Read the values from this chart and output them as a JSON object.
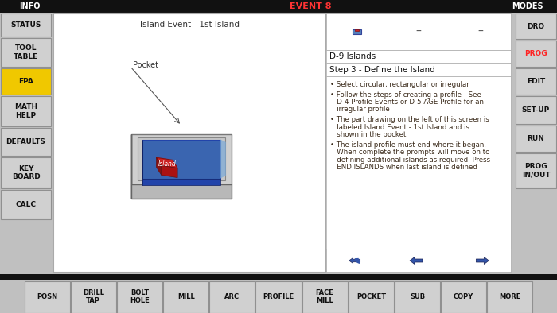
{
  "bg_color": "#c0c0c0",
  "title_bar_color": "#111111",
  "title_text": "EVENT 8",
  "title_text_color": "#ff3333",
  "info_label": "INFO",
  "modes_label": "MODES",
  "left_buttons": [
    "STATUS",
    "TOOL\nTABLE",
    "EPA",
    "MATH\nHELP",
    "DEFAULTS",
    "KEY\nBOARD",
    "CALC"
  ],
  "epa_color": "#f0c800",
  "right_buttons": [
    "DRO",
    "PROG",
    "EDIT",
    "SET-UP",
    "RUN",
    "PROG\nIN/OUT"
  ],
  "prog_color": "#ff2222",
  "bottom_buttons": [
    "POSN",
    "DRILL\nTAP",
    "BOLT\nHOLE",
    "MILL",
    "ARC",
    "PROFILE",
    "FACE\nMILL",
    "POCKET",
    "SUB",
    "COPY",
    "MORE"
  ],
  "diagram_title": "Island Event - 1st Island",
  "pocket_label": "Pocket",
  "island_label": "Island",
  "section_title": "D-9 Islands",
  "step_title": "Step 3 - Define the Island",
  "bullet_points": [
    "Select circular, rectangular or irregular",
    "Follow the steps of creating a profile - See\nD-4 Profile Events or D-5 AGE Profile for an\nirregular profile",
    "The part drawing on the left of this screen is\nlabeled Island Event - 1st Island and is\nshown in the pocket",
    "The island profile must end where it began.\nWhen complete the prompts will move on to\ndefining additional islands as required. Press\nEND ISLANDS when last island is defined"
  ],
  "text_color": "#3a2a1a",
  "btn_bg": "#d0d0d0",
  "btn_border": "#909090",
  "white": "#ffffff",
  "arrow_color": "#3355aa"
}
